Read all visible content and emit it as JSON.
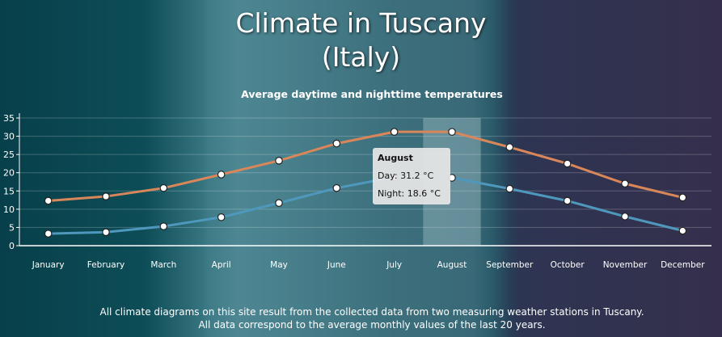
{
  "page": {
    "title_line1": "Climate in Tuscany",
    "title_line2": "(Italy)",
    "footer_line1": "All climate diagrams on this site result from the collected data from two measuring weather stations in Tuscany.",
    "footer_line2": "All data correspond to the average monthly values of the last 20 years."
  },
  "tooltip": {
    "month": "August",
    "day": "Day: 31.2 °C",
    "night": "Night: 18.6 °C"
  },
  "colors": {
    "day_line": "#d9875a",
    "night_line": "#4f98bd",
    "highlight_band": "#9bbcc4"
  },
  "chart_data": {
    "type": "line",
    "title": "Average daytime and nighttime temperatures",
    "categories": [
      "January",
      "February",
      "March",
      "April",
      "May",
      "June",
      "July",
      "August",
      "September",
      "October",
      "November",
      "December"
    ],
    "series": [
      {
        "key": "day",
        "values": [
          12.3,
          13.5,
          15.8,
          19.5,
          23.3,
          28.0,
          31.2,
          31.2,
          27.0,
          22.5,
          17.0,
          13.2
        ]
      },
      {
        "key": "night",
        "values": [
          3.3,
          3.7,
          5.3,
          7.8,
          11.7,
          15.8,
          18.8,
          18.6,
          15.6,
          12.3,
          8.0,
          4.1
        ]
      }
    ],
    "ylim": [
      0,
      35
    ],
    "yticks": [
      0,
      5,
      10,
      15,
      20,
      25,
      30,
      35
    ],
    "grid": true,
    "highlighted_category": "August"
  }
}
